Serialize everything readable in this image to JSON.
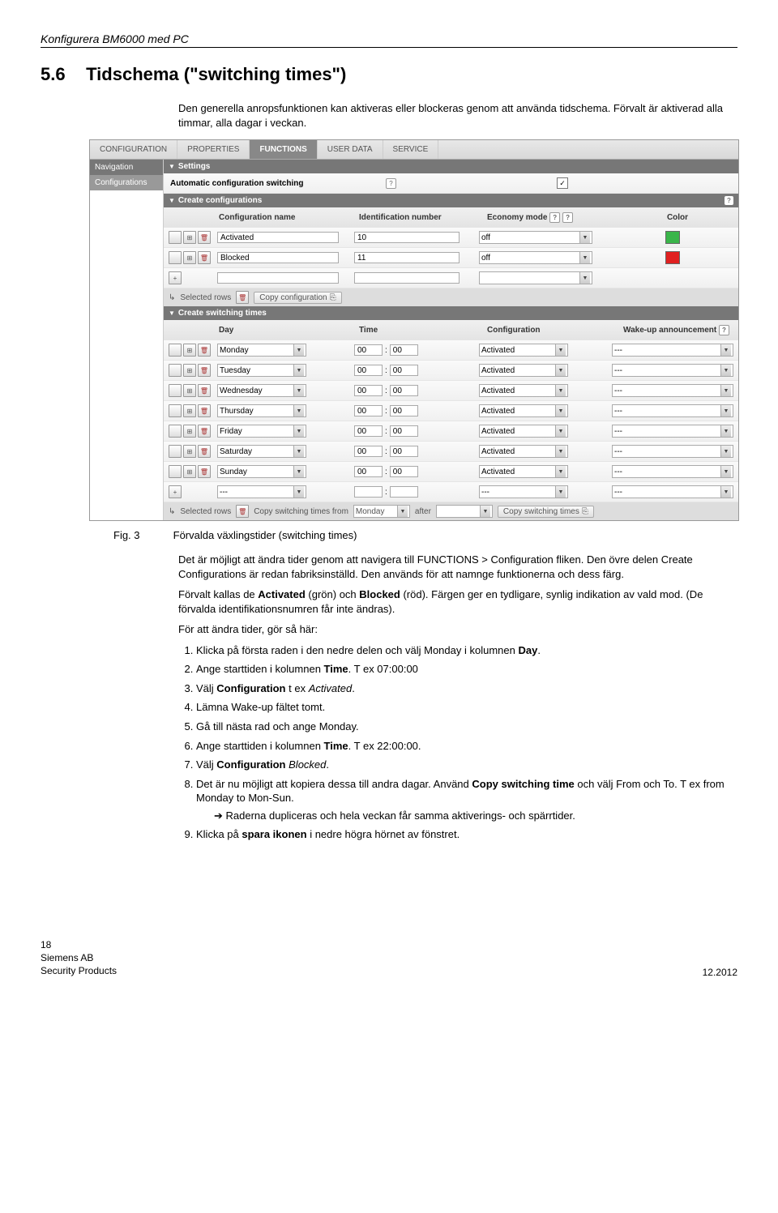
{
  "page_header": "Konfigurera BM6000 med PC",
  "section": {
    "number": "5.6",
    "title": "Tidschema (\"switching times\")"
  },
  "intro": "Den generella anropsfunktionen kan aktiveras eller blockeras genom att använda tidschema. Förvalt är aktiverad alla timmar, alla dagar i veckan.",
  "app": {
    "tabs": [
      "CONFIGURATION",
      "PROPERTIES",
      "FUNCTIONS",
      "USER DATA",
      "SERVICE"
    ],
    "active_tab": "FUNCTIONS",
    "nav_header": "Navigation",
    "nav_item": "Configurations",
    "settings": {
      "title": "Settings",
      "label": "Automatic configuration switching",
      "checked": true
    },
    "create_config": {
      "title": "Create configurations",
      "headers": [
        "Configuration name",
        "Identification number",
        "Economy mode",
        "Color"
      ],
      "rows": [
        {
          "name": "Activated",
          "id": "10",
          "econ": "off",
          "color": "#3ab54a"
        },
        {
          "name": "Blocked",
          "id": "11",
          "econ": "off",
          "color": "#e02020"
        },
        {
          "name": "",
          "id": "",
          "econ": "",
          "color": "#ffffff"
        }
      ],
      "util_selected": "Selected rows",
      "util_copy": "Copy configuration"
    },
    "switching": {
      "title": "Create switching times",
      "headers": [
        "Day",
        "Time",
        "Configuration",
        "Wake-up announcement"
      ],
      "rows": [
        {
          "day": "Monday",
          "h": "00",
          "m": "00",
          "cfg": "Activated",
          "wake": "---"
        },
        {
          "day": "Tuesday",
          "h": "00",
          "m": "00",
          "cfg": "Activated",
          "wake": "---"
        },
        {
          "day": "Wednesday",
          "h": "00",
          "m": "00",
          "cfg": "Activated",
          "wake": "---"
        },
        {
          "day": "Thursday",
          "h": "00",
          "m": "00",
          "cfg": "Activated",
          "wake": "---"
        },
        {
          "day": "Friday",
          "h": "00",
          "m": "00",
          "cfg": "Activated",
          "wake": "---"
        },
        {
          "day": "Saturday",
          "h": "00",
          "m": "00",
          "cfg": "Activated",
          "wake": "---"
        },
        {
          "day": "Sunday",
          "h": "00",
          "m": "00",
          "cfg": "Activated",
          "wake": "---"
        },
        {
          "day": "---",
          "h": "",
          "m": "",
          "cfg": "---",
          "wake": "---"
        }
      ],
      "util_selected": "Selected rows",
      "util_copy_label": "Copy switching times from",
      "util_from": "Monday",
      "util_after_label": "after",
      "util_after": "",
      "util_copy_btn": "Copy switching times"
    }
  },
  "fig": {
    "label": "Fig. 3",
    "caption": "Förvalda växlingstider (switching times)"
  },
  "para1": "Det är möjligt att ändra tider genom att navigera till FUNCTIONS > Configuration fliken. Den övre delen Create Configurations är redan fabriksinställd. Den används för att namnge funktionerna och dess färg.",
  "para2_pre": "Förvalt kallas de ",
  "para2_act": "Activated",
  "para2_mid": " (grön) och ",
  "para2_blk": "Blocked",
  "para2_post": " (röd). Färgen ger en tydligare, synlig indikation av vald mod. (De förvalda identifikationsnumren får inte ändras).",
  "steps_intro": "För att ändra tider, gör så här:",
  "steps": [
    "Klicka på första raden i den nedre delen och välj Monday i kolumnen <b>Day</b>.",
    "Ange starttiden i kolumnen <b>Time</b>. T ex 07:00:00",
    "Välj <b>Configuration</b> t ex <i>Activated</i>.",
    "Lämna Wake-up fältet tomt.",
    "Gå till nästa rad och ange Monday.",
    "Ange starttiden i kolumnen <b>Time</b>. T ex 22:00:00.",
    "Välj <b>Configuration</b> <i>Blocked</i>.",
    "Det är nu möjligt att kopiera dessa till andra dagar. Använd <b>Copy switching time</b> och välj From och To. T ex from Monday to Mon-Sun."
  ],
  "arrow_line": "➔ Raderna dupliceras och hela veckan får samma aktiverings- och spärrtider.",
  "step9": "Klicka på <b>spara ikonen</b> i nedre högra hörnet av fönstret.",
  "footer": {
    "page": "18",
    "company": "Siemens AB",
    "dept": "Security Products",
    "date": "12.2012"
  }
}
